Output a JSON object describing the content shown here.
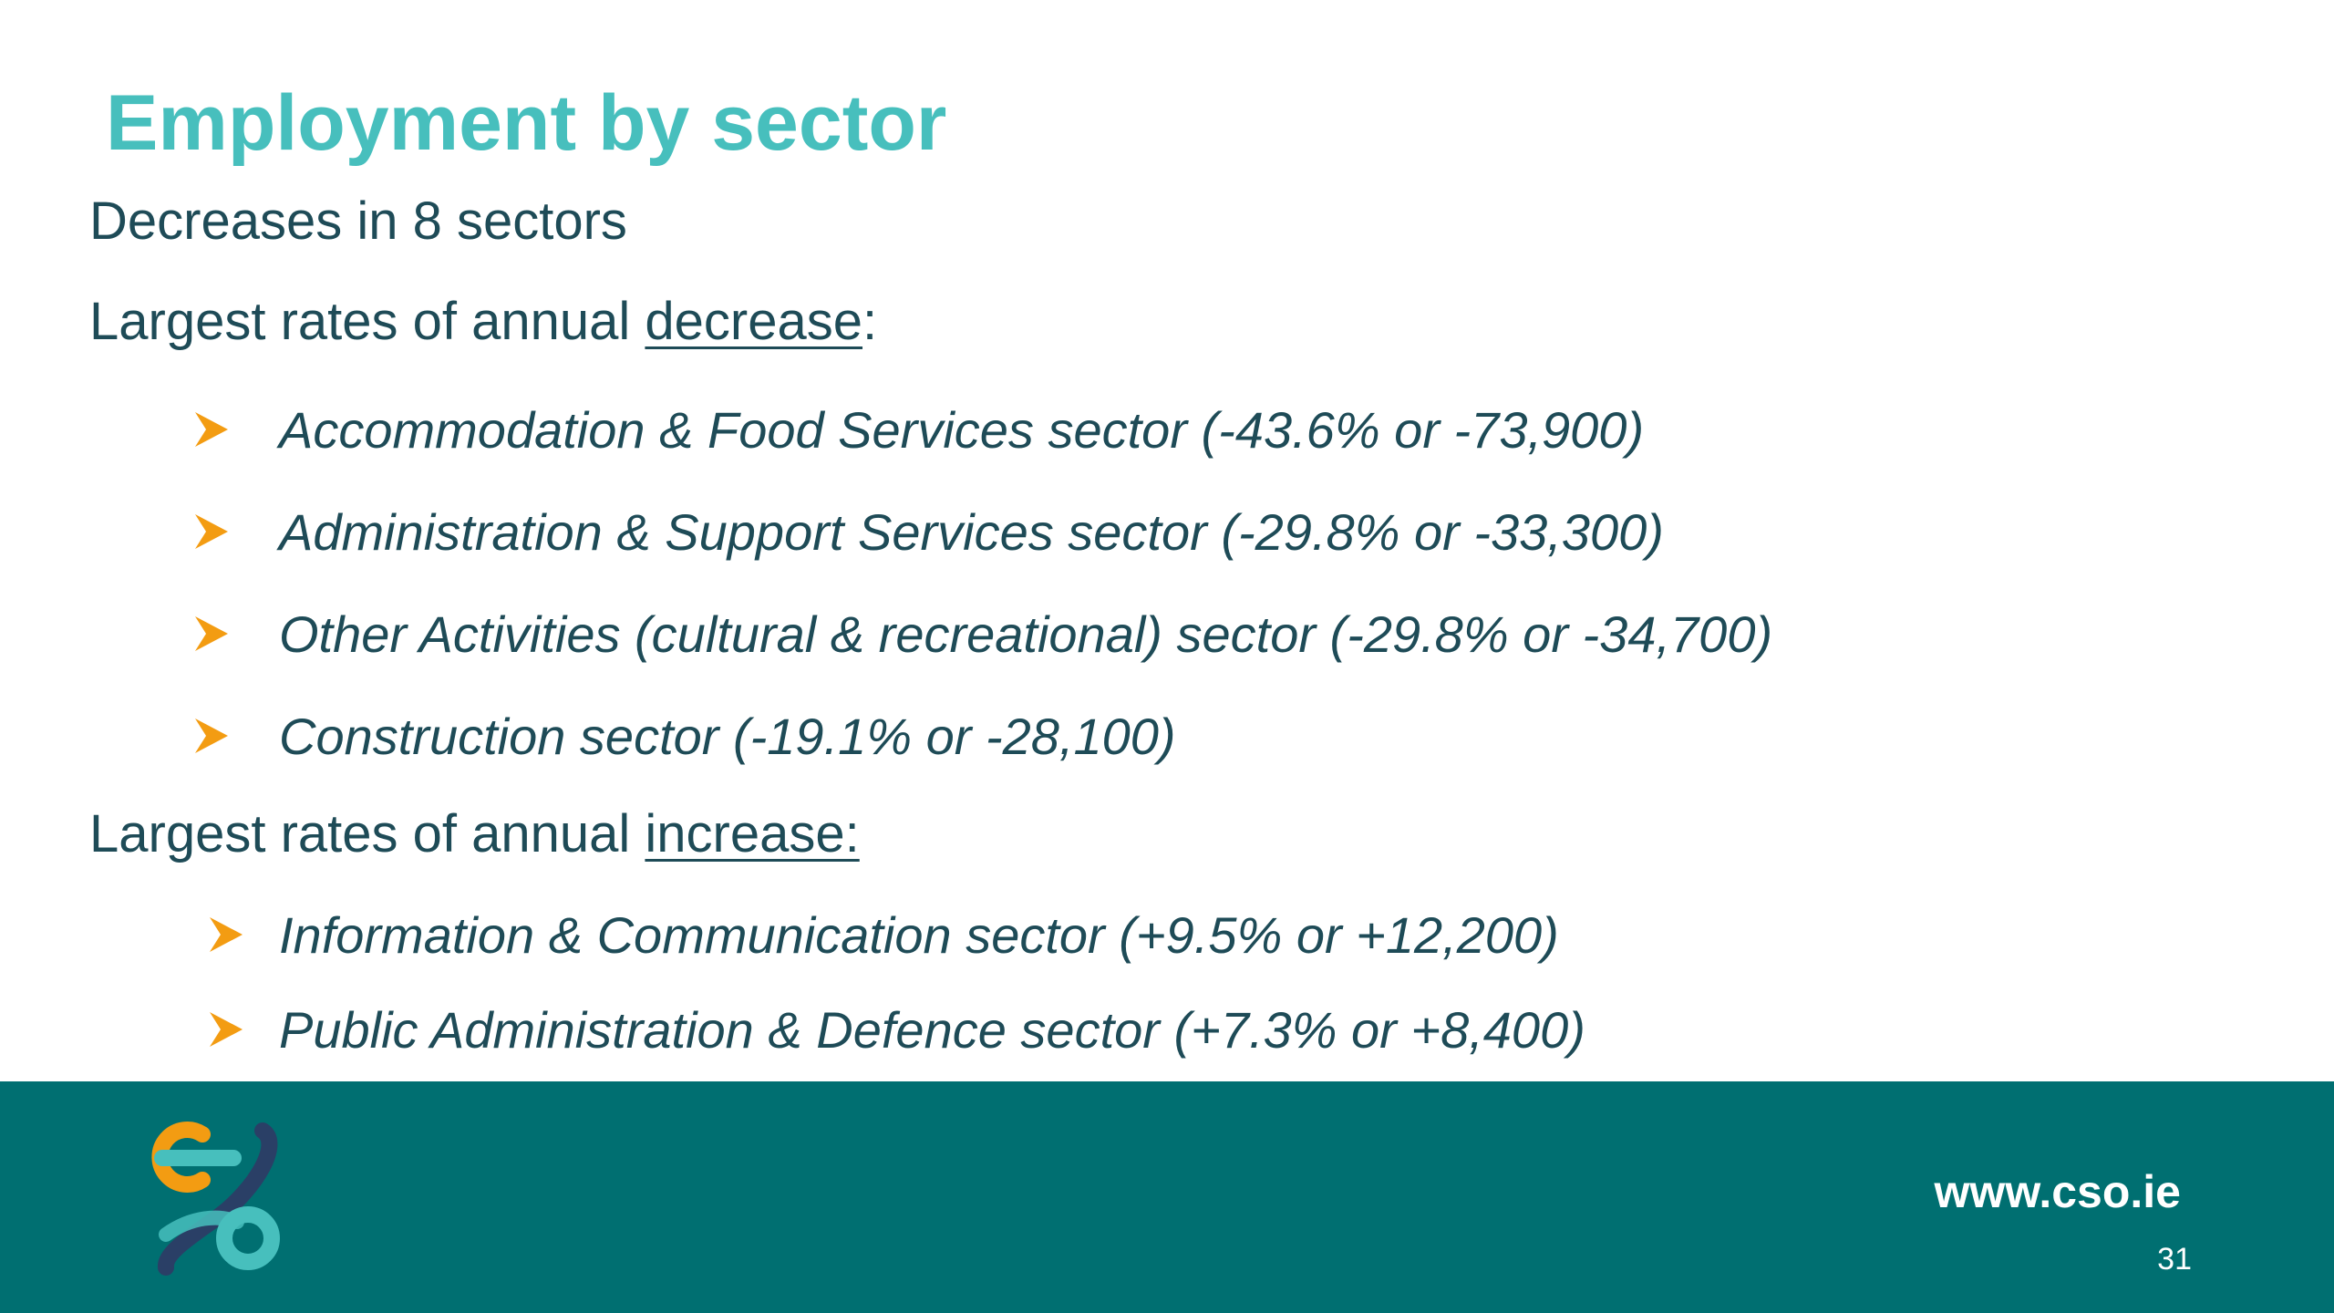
{
  "slide": {
    "title": "Employment by sector",
    "summary": "Decreases in 8 sectors",
    "decrease_heading": {
      "prefix": "Largest rates of annual ",
      "emphasis": "decrease",
      "suffix": ":"
    },
    "decrease_items": [
      "Accommodation & Food Services sector (-43.6% or -73,900)",
      "Administration & Support Services sector (-29.8% or -33,300)",
      "Other Activities (cultural & recreational) sector (-29.8% or -34,700)",
      "Construction sector (-19.1% or -28,100)"
    ],
    "increase_heading": {
      "prefix": "Largest rates of annual ",
      "emphasis": "increase:"
    },
    "increase_items": [
      "Information & Communication sector (+9.5% or +12,200)",
      "Public Administration & Defence sector (+7.3% or +8,400)"
    ]
  },
  "footer": {
    "url": "www.cso.ie",
    "page_number": "31",
    "logo_icon": "cso-logo-icon"
  },
  "colors": {
    "title": "#47bfbd",
    "text": "#1e4b57",
    "bullet_arrow": "#f39c12",
    "footer_bg": "#006f71"
  }
}
